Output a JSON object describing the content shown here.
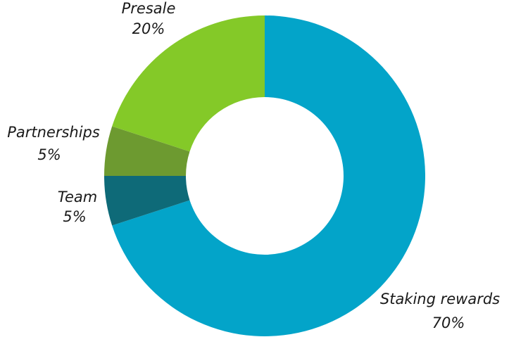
{
  "chart_data": {
    "type": "pie",
    "style": "donut",
    "slices": [
      {
        "label": "Staking rewards",
        "value": 70,
        "value_label": "70%",
        "color": "#03a4c9"
      },
      {
        "label": "Team",
        "value": 5,
        "value_label": "5%",
        "color": "#0e6a78"
      },
      {
        "label": "Partnerships",
        "value": 5,
        "value_label": "5%",
        "color": "#6d9a30"
      },
      {
        "label": "Presale",
        "value": 20,
        "value_label": "20%",
        "color": "#84c928"
      }
    ]
  }
}
